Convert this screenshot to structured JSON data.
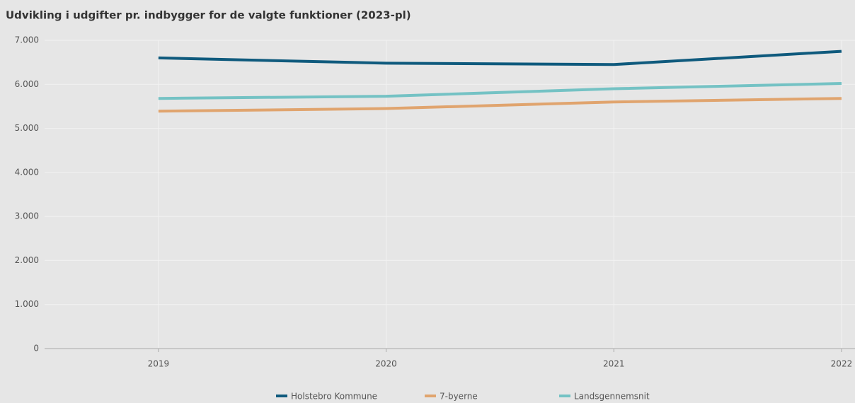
{
  "chart_data": {
    "type": "line",
    "title": "Udvikling i udgifter pr. indbygger for de valgte funktioner (2023-pl)",
    "categories": [
      "2019",
      "2020",
      "2021",
      "2022"
    ],
    "series": [
      {
        "name": "Holstebro Kommune",
        "color": "#0f5a7d",
        "values": [
          6600,
          6480,
          6450,
          6750
        ]
      },
      {
        "name": "7-byerne",
        "color": "#e0a46e",
        "values": [
          5390,
          5450,
          5600,
          5680
        ]
      },
      {
        "name": "Landsgennemsnit",
        "color": "#74c2c4",
        "values": [
          5680,
          5730,
          5900,
          6020
        ]
      }
    ],
    "ylim": [
      0,
      7000
    ],
    "yticks": [
      0,
      {
        "value": 1000,
        "label": "1.000"
      },
      {
        "value": 2000,
        "label": "2.000"
      },
      {
        "value": 3000,
        "label": "3.000"
      },
      {
        "value": 4000,
        "label": "4.000"
      },
      {
        "value": 5000,
        "label": "5.000"
      },
      {
        "value": 6000,
        "label": "6.000"
      },
      {
        "value": 7000,
        "label": "7.000"
      }
    ],
    "grid": true,
    "legend": "bottom"
  }
}
